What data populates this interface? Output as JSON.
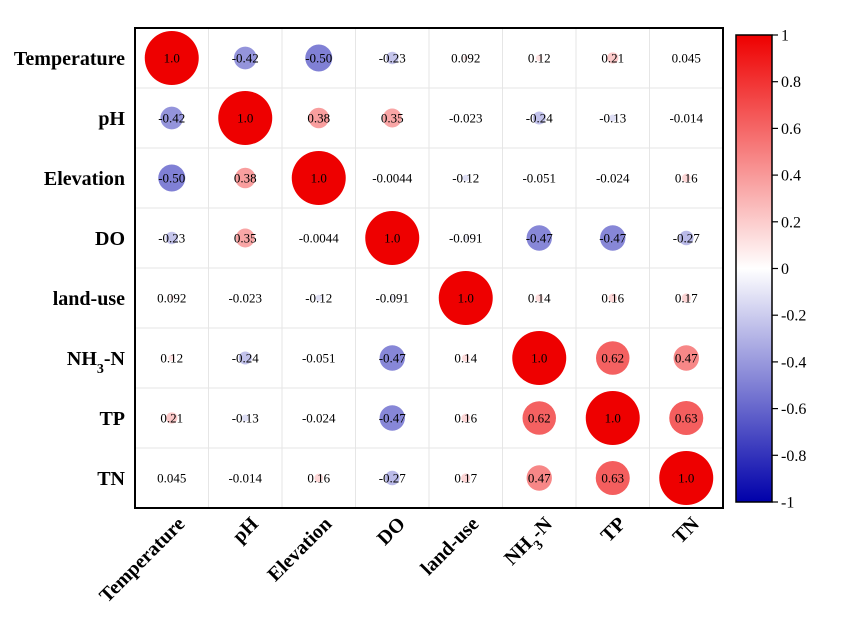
{
  "chart_data": {
    "type": "heatmap",
    "variables": [
      "Temperature",
      "pH",
      "Elevation",
      "DO",
      "land-use",
      "NH3-N",
      "TP",
      "TN"
    ],
    "variable_display": [
      {
        "base": "Temperature",
        "sub": "",
        "tail": ""
      },
      {
        "base": "pH",
        "sub": "",
        "tail": ""
      },
      {
        "base": "Elevation",
        "sub": "",
        "tail": ""
      },
      {
        "base": "DO",
        "sub": "",
        "tail": ""
      },
      {
        "base": "land-use",
        "sub": "",
        "tail": ""
      },
      {
        "base": "NH",
        "sub": "3",
        "tail": "-N"
      },
      {
        "base": "TP",
        "sub": "",
        "tail": ""
      },
      {
        "base": "TN",
        "sub": "",
        "tail": ""
      }
    ],
    "values": [
      [
        1.0,
        -0.42,
        -0.5,
        -0.23,
        0.092,
        0.12,
        0.21,
        0.045
      ],
      [
        -0.42,
        1.0,
        0.38,
        0.35,
        -0.023,
        -0.24,
        -0.13,
        -0.014
      ],
      [
        -0.5,
        0.38,
        1.0,
        -0.0044,
        -0.12,
        -0.051,
        -0.024,
        0.16
      ],
      [
        -0.23,
        0.35,
        -0.0044,
        1.0,
        -0.091,
        -0.47,
        -0.47,
        -0.27
      ],
      [
        0.092,
        -0.023,
        -0.12,
        -0.091,
        1.0,
        0.14,
        0.16,
        0.17
      ],
      [
        0.12,
        -0.24,
        -0.051,
        -0.47,
        0.14,
        1.0,
        0.62,
        0.47
      ],
      [
        0.21,
        -0.13,
        -0.024,
        -0.47,
        0.16,
        0.62,
        1.0,
        0.63
      ],
      [
        0.045,
        -0.014,
        0.16,
        -0.27,
        0.17,
        0.47,
        0.63,
        1.0
      ]
    ],
    "labels": [
      [
        "1.0",
        "-0.42",
        "-0.50",
        "-0.23",
        "0.092",
        "0.12",
        "0.21",
        "0.045"
      ],
      [
        "-0.42",
        "1.0",
        "0.38",
        "0.35",
        "-0.023",
        "-0.24",
        "-0.13",
        "-0.014"
      ],
      [
        "-0.50",
        "0.38",
        "1.0",
        "-0.0044",
        "-0.12",
        "-0.051",
        "-0.024",
        "0.16"
      ],
      [
        "-0.23",
        "0.35",
        "-0.0044",
        "1.0",
        "-0.091",
        "-0.47",
        "-0.47",
        "-0.27"
      ],
      [
        "0.092",
        "-0.023",
        "-0.12",
        "-0.091",
        "1.0",
        "0.14",
        "0.16",
        "0.17"
      ],
      [
        "0.12",
        "-0.24",
        "-0.051",
        "-0.47",
        "0.14",
        "1.0",
        "0.62",
        "0.47"
      ],
      [
        "0.21",
        "-0.13",
        "-0.024",
        "-0.47",
        "0.16",
        "0.62",
        "1.0",
        "0.63"
      ],
      [
        "0.045",
        "-0.014",
        "0.16",
        "-0.27",
        "0.17",
        "0.47",
        "0.63",
        "1.0"
      ]
    ],
    "marker": "circle sized by |r|, colored by r",
    "colorbar": {
      "range": [
        -1,
        1
      ],
      "ticks": [
        "1",
        "0.8",
        "0.6",
        "0.4",
        "0.2",
        "0",
        "-0.2",
        "-0.4",
        "-0.6",
        "-0.8",
        "-1"
      ],
      "colors": {
        "negative": "#0000aa",
        "zero": "#ffffff",
        "positive": "#ee0000"
      }
    },
    "grid": true,
    "legend_position": "right"
  }
}
